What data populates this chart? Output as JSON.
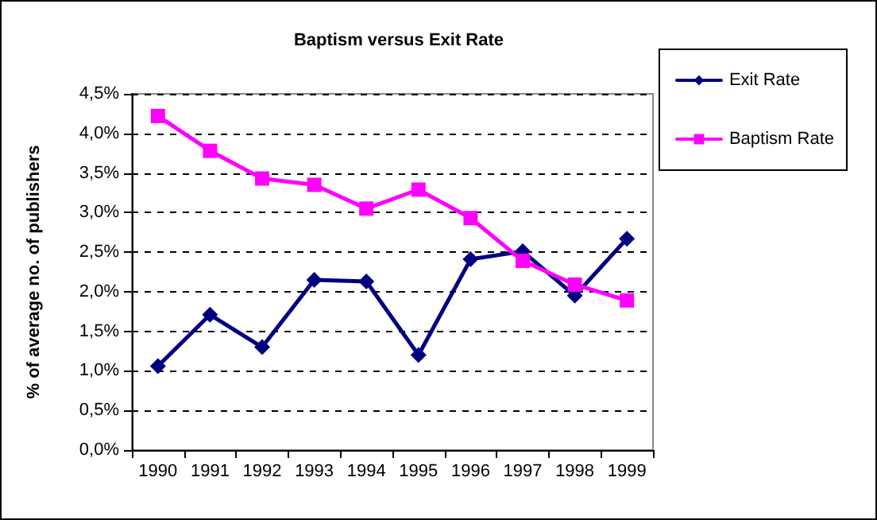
{
  "chart_data": {
    "type": "line",
    "title": "Baptism versus Exit Rate",
    "ylabel": "% of average no. of publishers",
    "categories": [
      "1990",
      "1991",
      "1992",
      "1993",
      "1994",
      "1995",
      "1996",
      "1997",
      "1998",
      "1999"
    ],
    "series": [
      {
        "name": "Exit Rate",
        "color": "#000080",
        "marker": "diamond",
        "values": [
          1.06,
          1.71,
          1.3,
          2.15,
          2.13,
          1.2,
          2.41,
          2.51,
          1.95,
          2.67
        ]
      },
      {
        "name": "Baptism Rate",
        "color": "#ff00ff",
        "marker": "square",
        "values": [
          4.22,
          3.78,
          3.43,
          3.35,
          3.05,
          3.29,
          2.93,
          2.39,
          2.09,
          1.89
        ]
      }
    ],
    "ylim": [
      0,
      4.5
    ],
    "yticks": [
      {
        "value": 0,
        "label": "0,0%"
      },
      {
        "value": 0.5,
        "label": "0,5%"
      },
      {
        "value": 1,
        "label": "1,0%"
      },
      {
        "value": 1.5,
        "label": "1,5%"
      },
      {
        "value": 2,
        "label": "2,0%"
      },
      {
        "value": 2.5,
        "label": "2,5%"
      },
      {
        "value": 3,
        "label": "3,0%"
      },
      {
        "value": 3.5,
        "label": "3,5%"
      },
      {
        "value": 4,
        "label": "4,0%"
      },
      {
        "value": 4.5,
        "label": "4,5%"
      }
    ],
    "grid": "y",
    "legend": "right",
    "line_style": "solid"
  }
}
